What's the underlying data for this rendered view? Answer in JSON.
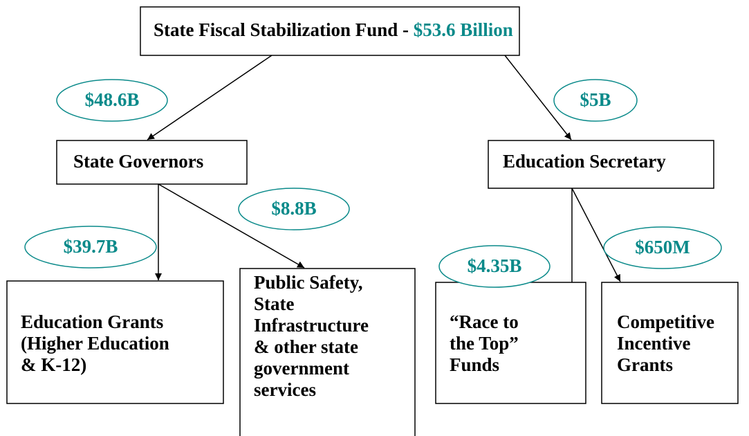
{
  "title": {
    "name": "State Fiscal Stabilization Fund",
    "separator": "-",
    "amount": "$53.6 Billion"
  },
  "nodes": [
    {
      "lines": [
        "State Governors"
      ]
    },
    {
      "lines": [
        "Education Secretary"
      ]
    },
    {
      "lines": [
        "Education Grants",
        "(Higher Education",
        "& K-12)"
      ]
    },
    {
      "lines": [
        "Public Safety,",
        "State",
        "Infrastructure",
        "& other state",
        "government",
        "services"
      ]
    },
    {
      "lines": [
        "“Race to",
        "the Top”",
        "Funds"
      ]
    },
    {
      "lines": [
        "Competitive",
        "Incentive",
        "Grants"
      ]
    }
  ],
  "amounts": [
    "$48.6B",
    "$5B",
    "$8.8B",
    "$39.7B",
    "$4.35B",
    "$650M"
  ]
}
